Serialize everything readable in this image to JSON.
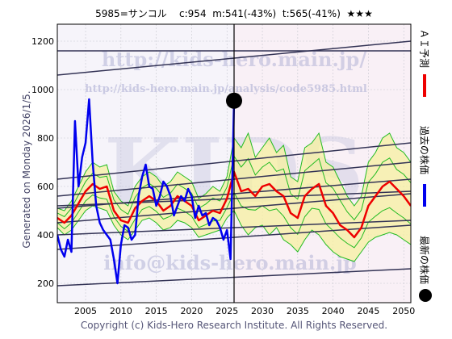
{
  "header": {
    "code_name": "5985=サンコル",
    "current": "c:954",
    "mid": "m:541(-43%)",
    "target": "t:565(-41%)",
    "stars": "★★★"
  },
  "side_note": "Generated on Monday 2026/1/5.",
  "watermarks": {
    "top": "http://kids-hero.main.jp/",
    "sub": "http://kids-hero.main.jp/analysis/code5985.html",
    "big": "KIDS",
    "bottom": "info@kids-hero.main.jp"
  },
  "footer": "Copyright (c) Kids-Hero Research Institute. All Rights Reserved.",
  "legend": {
    "ai_forecast": "ＡＩ予測",
    "past_price": "過去の株価",
    "latest_price": "最新の株価"
  },
  "colors": {
    "past": "#0000ee",
    "forecast": "#ee0000",
    "band_fill": "#f5f0a0",
    "band_line": "#22bb22",
    "trend": "#333355",
    "now_line": "#000000"
  },
  "chart_data": {
    "type": "line",
    "xlim": [
      2001,
      2051
    ],
    "ylim": [
      120,
      1270
    ],
    "x_ticks": [
      2005,
      2010,
      2015,
      2020,
      2025,
      2030,
      2035,
      2040,
      2045,
      2050
    ],
    "y_ticks": [
      200,
      400,
      600,
      800,
      1000,
      1200
    ],
    "grid": true,
    "now": {
      "x": 2026.0,
      "y": 954
    },
    "series": [
      {
        "name": "過去の株価",
        "x": [
          2001,
          2001.5,
          2002,
          2002.5,
          2003,
          2003.5,
          2004,
          2004.5,
          2005,
          2005.5,
          2006,
          2006.5,
          2007,
          2007.5,
          2008,
          2008.5,
          2009,
          2009.5,
          2010,
          2010.5,
          2011,
          2011.5,
          2012,
          2012.5,
          2013,
          2013.5,
          2014,
          2014.5,
          2015,
          2015.5,
          2016,
          2016.5,
          2017,
          2017.5,
          2018,
          2018.5,
          2019,
          2019.5,
          2020,
          2020.5,
          2021,
          2021.5,
          2022,
          2022.5,
          2023,
          2023.5,
          2024,
          2024.5,
          2025,
          2025.5,
          2026
        ],
        "y": [
          400,
          340,
          310,
          380,
          330,
          870,
          600,
          720,
          780,
          960,
          700,
          520,
          450,
          420,
          400,
          380,
          300,
          200,
          360,
          440,
          430,
          380,
          400,
          560,
          640,
          690,
          600,
          590,
          520,
          560,
          620,
          600,
          560,
          480,
          520,
          560,
          540,
          590,
          560,
          470,
          520,
          480,
          490,
          440,
          470,
          460,
          430,
          380,
          420,
          300,
          954
        ]
      },
      {
        "name": "ＡＩ予測",
        "x": [
          2001,
          2002,
          2003,
          2004,
          2005,
          2006,
          2007,
          2008,
          2009,
          2010,
          2011,
          2012,
          2013,
          2014,
          2015,
          2016,
          2017,
          2018,
          2019,
          2020,
          2021,
          2022,
          2023,
          2024,
          2025,
          2026,
          2027,
          2028,
          2029,
          2030,
          2031,
          2032,
          2033,
          2034,
          2035,
          2036,
          2037,
          2038,
          2039,
          2040,
          2041,
          2042,
          2043,
          2044,
          2045,
          2046,
          2047,
          2048,
          2049,
          2050,
          2051
        ],
        "y": [
          470,
          450,
          480,
          530,
          580,
          610,
          590,
          600,
          500,
          460,
          450,
          510,
          540,
          560,
          540,
          500,
          520,
          560,
          540,
          520,
          460,
          480,
          500,
          490,
          550,
          660,
          580,
          590,
          560,
          600,
          610,
          580,
          560,
          490,
          470,
          560,
          590,
          610,
          520,
          490,
          440,
          420,
          390,
          430,
          520,
          560,
          600,
          620,
          590,
          560,
          520
        ]
      }
    ],
    "band_lower": [
      430,
      400,
      420,
      460,
      500,
      520,
      510,
      500,
      440,
      400,
      380,
      420,
      460,
      470,
      450,
      420,
      430,
      460,
      450,
      430,
      390,
      400,
      410,
      420,
      470,
      500,
      440,
      400,
      430,
      440,
      400,
      430,
      380,
      360,
      330,
      380,
      420,
      400,
      360,
      330,
      310,
      300,
      290,
      330,
      370,
      390,
      400,
      410,
      400,
      380,
      360
    ],
    "band_upper": [
      510,
      500,
      540,
      600,
      660,
      700,
      680,
      690,
      580,
      540,
      520,
      600,
      640,
      660,
      640,
      600,
      620,
      660,
      640,
      620,
      550,
      570,
      600,
      580,
      640,
      800,
      760,
      820,
      720,
      760,
      800,
      740,
      770,
      640,
      620,
      760,
      780,
      820,
      700,
      680,
      620,
      560,
      520,
      560,
      700,
      740,
      800,
      820,
      760,
      740,
      700
    ],
    "trend_lines": [
      {
        "x": [
          2001,
          2051
        ],
        "y": [
          1160,
          1160
        ]
      },
      {
        "x": [
          2001,
          2051
        ],
        "y": [
          1060,
          1200
        ]
      },
      {
        "x": [
          2001,
          2051
        ],
        "y": [
          630,
          780
        ]
      },
      {
        "x": [
          2001,
          2051
        ],
        "y": [
          560,
          700
        ]
      },
      {
        "x": [
          2001,
          2051
        ],
        "y": [
          510,
          630
        ]
      },
      {
        "x": [
          2001,
          2051
        ],
        "y": [
          520,
          580
        ]
      },
      {
        "x": [
          2001,
          2051
        ],
        "y": [
          450,
          570
        ]
      },
      {
        "x": [
          2001,
          2051
        ],
        "y": [
          400,
          460
        ]
      },
      {
        "x": [
          2001,
          2051
        ],
        "y": [
          340,
          440
        ]
      },
      {
        "x": [
          2001,
          2051
        ],
        "y": [
          190,
          260
        ]
      }
    ]
  }
}
